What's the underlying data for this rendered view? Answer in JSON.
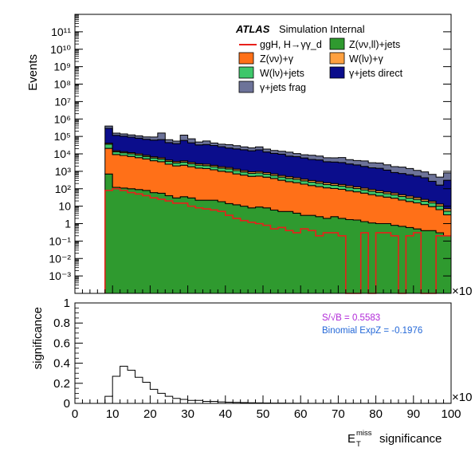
{
  "colors": {
    "signal": "#e8201a",
    "zvvjets": "#2f9a2f",
    "zvvgamma": "#ff7018",
    "wlvjets": "#3ec76a",
    "wlvgamma": "#ffa040",
    "gjets_direct": "#0b0d8c",
    "gjets_frag": "#6d7399",
    "sig_text": "#b028d8",
    "binom_text": "#2468d8"
  },
  "chart_data": [
    {
      "type": "area",
      "stacked": true,
      "ylabel": "Events",
      "yscale": "log",
      "ylim": [
        0.0001,
        1000000000000
      ],
      "ytick_labels": [
        "10⁻³",
        "10⁻²",
        "10⁻¹",
        "1",
        "10",
        "10²",
        "10³",
        "10⁴",
        "10⁵",
        "10⁶",
        "10⁷",
        "10⁸",
        "10⁹",
        "10¹⁰",
        "10¹¹"
      ],
      "x_exponent_label": "×10",
      "header": {
        "brand": "ATLAS",
        "rest": "Simulation Internal"
      },
      "legend_position": "top-right",
      "x_bins_start": 8,
      "x_bin_width": 2,
      "stack_order": [
        "zvvjets",
        "zvvgamma",
        "wlvjets",
        "wlvgamma",
        "gjets_direct",
        "gjets_frag"
      ],
      "series": [
        {
          "key": "zvvjets",
          "name": "Z(νν,ll)+jets",
          "values": [
            700,
            120,
            110,
            100,
            90,
            80,
            60,
            55,
            40,
            30,
            35,
            30,
            22,
            22,
            22,
            18,
            14,
            12,
            10,
            8,
            9,
            8,
            6,
            5,
            5,
            4,
            3,
            3,
            2.5,
            2,
            2.5,
            2,
            1.7,
            1.6,
            1.3,
            1.1,
            1,
            1,
            0.8,
            0.7,
            0.6,
            0.5,
            0.4,
            0.4,
            0.3,
            0.2
          ]
        },
        {
          "key": "zvvgamma",
          "name": "Z(νν)+γ",
          "values": [
            20000,
            9000,
            8000,
            7000,
            6000,
            5000,
            4000,
            3500,
            2500,
            2000,
            2200,
            1800,
            1500,
            1400,
            1200,
            1000,
            900,
            700,
            600,
            500,
            520,
            450,
            380,
            300,
            250,
            220,
            180,
            150,
            130,
            110,
            100,
            90,
            75,
            65,
            55,
            45,
            38,
            32,
            28,
            22,
            18,
            15,
            12,
            9,
            6,
            3
          ]
        },
        {
          "key": "wlvjets",
          "name": "W(lν)+jets",
          "values": [
            15000,
            4000,
            3500,
            3000,
            2500,
            2000,
            1800,
            1500,
            1200,
            1000,
            1100,
            900,
            750,
            700,
            600,
            500,
            450,
            380,
            300,
            260,
            270,
            230,
            190,
            160,
            140,
            120,
            100,
            85,
            75,
            62,
            55,
            50,
            42,
            36,
            30,
            26,
            22,
            19,
            16,
            13,
            11,
            9,
            7,
            6,
            4,
            2
          ]
        },
        {
          "key": "wlvgamma",
          "name": "W(lν)+γ",
          "values": [
            5000,
            2000,
            1800,
            1600,
            1400,
            1200,
            1000,
            900,
            700,
            600,
            650,
            550,
            450,
            420,
            380,
            320,
            280,
            240,
            200,
            170,
            175,
            150,
            130,
            110,
            95,
            80,
            70,
            60,
            52,
            45,
            40,
            35,
            30,
            26,
            22,
            19,
            16,
            14,
            12,
            10,
            8,
            7,
            5,
            4,
            3,
            2
          ]
        },
        {
          "key": "gjets_direct",
          "name": "γ+jets direct",
          "values": [
            250000,
            100000,
            90000,
            80000,
            70000,
            60000,
            55000,
            60000,
            40000,
            35000,
            55000,
            40000,
            30000,
            32000,
            28000,
            24000,
            20000,
            18000,
            16000,
            14000,
            16000,
            12000,
            10000,
            9000,
            7000,
            6500,
            5500,
            4500,
            4200,
            3300,
            3200,
            3000,
            2500,
            2200,
            1800,
            1500,
            1400,
            1100,
            800,
            700,
            600,
            500,
            400,
            250,
            150,
            300
          ]
        },
        {
          "key": "gjets_frag",
          "name": "γ+jets frag",
          "values": [
            100000,
            40000,
            35000,
            30000,
            28000,
            25000,
            30000,
            90000,
            20000,
            15000,
            60000,
            30000,
            15000,
            20000,
            12000,
            10000,
            12000,
            10000,
            8000,
            7000,
            8000,
            6000,
            5000,
            4500,
            5000,
            3500,
            3000,
            3500,
            3000,
            2500,
            2500,
            3000,
            2000,
            1800,
            2000,
            1500,
            1500,
            1200,
            1000,
            1000,
            800,
            600,
            500,
            400,
            300,
            500
          ]
        },
        {
          "key": "signal",
          "name": "ggH, H→γγ_d",
          "style": "line",
          "values": [
            80,
            100,
            80,
            60,
            50,
            40,
            30,
            25,
            20,
            15,
            15,
            10,
            8,
            7,
            6,
            5,
            3,
            2,
            1.5,
            1.2,
            1,
            0.8,
            0.5,
            0.6,
            0.4,
            0.3,
            0.5,
            0.4,
            0.2,
            0.3,
            0.3,
            0.2,
            0.0001,
            0.0001,
            0.3,
            0.0001,
            0.3,
            0.3,
            0.2,
            0.0001,
            0.2,
            0.3,
            0.0001,
            0.0001,
            0.2,
            0.2
          ]
        }
      ]
    },
    {
      "type": "line",
      "ylabel": "significance",
      "xlabel_main": "E",
      "xlabel_sup": "miss",
      "xlabel_sub": "T",
      "xlabel_rest": "significance",
      "x_exponent_label": "×10",
      "xlim": [
        0,
        100
      ],
      "ylim": [
        0,
        1
      ],
      "x_ticks": [
        0,
        10,
        20,
        30,
        40,
        50,
        60,
        70,
        80,
        90,
        100
      ],
      "y_ticks": [
        0,
        0.2,
        0.4,
        0.6,
        0.8,
        1
      ],
      "y_tick_labels": [
        "0",
        "0.2",
        "0.4",
        "0.6",
        "0.8",
        "1"
      ],
      "annotations": {
        "s_over_sqrt_b": "S/√B = 0.5583",
        "binomial": "Binomial ExpZ = -0.1976"
      },
      "x_bins_start": 8,
      "x_bin_width": 2,
      "values": [
        0.07,
        0.27,
        0.37,
        0.33,
        0.26,
        0.21,
        0.14,
        0.1,
        0.07,
        0.05,
        0.04,
        0.03,
        0.03,
        0.02,
        0.02,
        0.015,
        0.012,
        0.01,
        0.008,
        0.006,
        0.005,
        0.004,
        0.003,
        0.003,
        0.002,
        0.002,
        0.002,
        0.001,
        0.001,
        0.001,
        0.001,
        0.001,
        0.0005,
        0.0005,
        0.0005,
        0.0005,
        0.0005,
        0.0005,
        0.0005,
        0.0005,
        0.0005,
        0.0005,
        0.0005,
        0.0005,
        0.0005,
        0.0005
      ]
    }
  ]
}
